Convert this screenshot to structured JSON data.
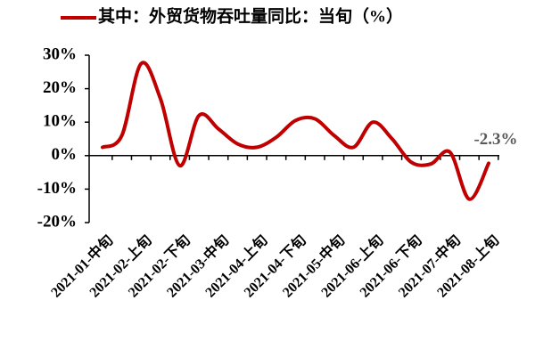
{
  "chart_data": {
    "type": "line",
    "categories": [
      "2021-01-中旬",
      null,
      "2021-02-上旬",
      null,
      "2021-02-下旬",
      null,
      "2021-03-中旬",
      null,
      "2021-04-上旬",
      null,
      "2021-04-下旬",
      null,
      "2021-05-中旬",
      null,
      "2021-06-上旬",
      null,
      "2021-06-下旬",
      null,
      "2021-07-中旬",
      null,
      "2021-08-上旬"
    ],
    "series": [
      {
        "name": "其中：外贸货物吞吐量同比：当旬（%）",
        "color": "#c00000",
        "values": [
          2.5,
          6,
          27.5,
          17,
          -3,
          12,
          8,
          3.5,
          2.5,
          5.5,
          10.5,
          11,
          6,
          2.5,
          10,
          5,
          -2,
          -2.5,
          1,
          -13,
          -2.3
        ],
        "value_labels": [
          null,
          null,
          null,
          null,
          null,
          null,
          null,
          null,
          null,
          null,
          null,
          null,
          null,
          null,
          null,
          null,
          null,
          null,
          null,
          null,
          "-2.3%"
        ]
      }
    ],
    "ylim": [
      -20,
      30
    ],
    "yticks": [
      {
        "value": -20,
        "label": "-20%"
      },
      {
        "value": -10,
        "label": "-10%"
      },
      {
        "value": 0,
        "label": "0%"
      },
      {
        "value": 10,
        "label": "10%"
      },
      {
        "value": 20,
        "label": "20%"
      },
      {
        "value": 30,
        "label": "30%"
      }
    ],
    "legend": "top"
  }
}
